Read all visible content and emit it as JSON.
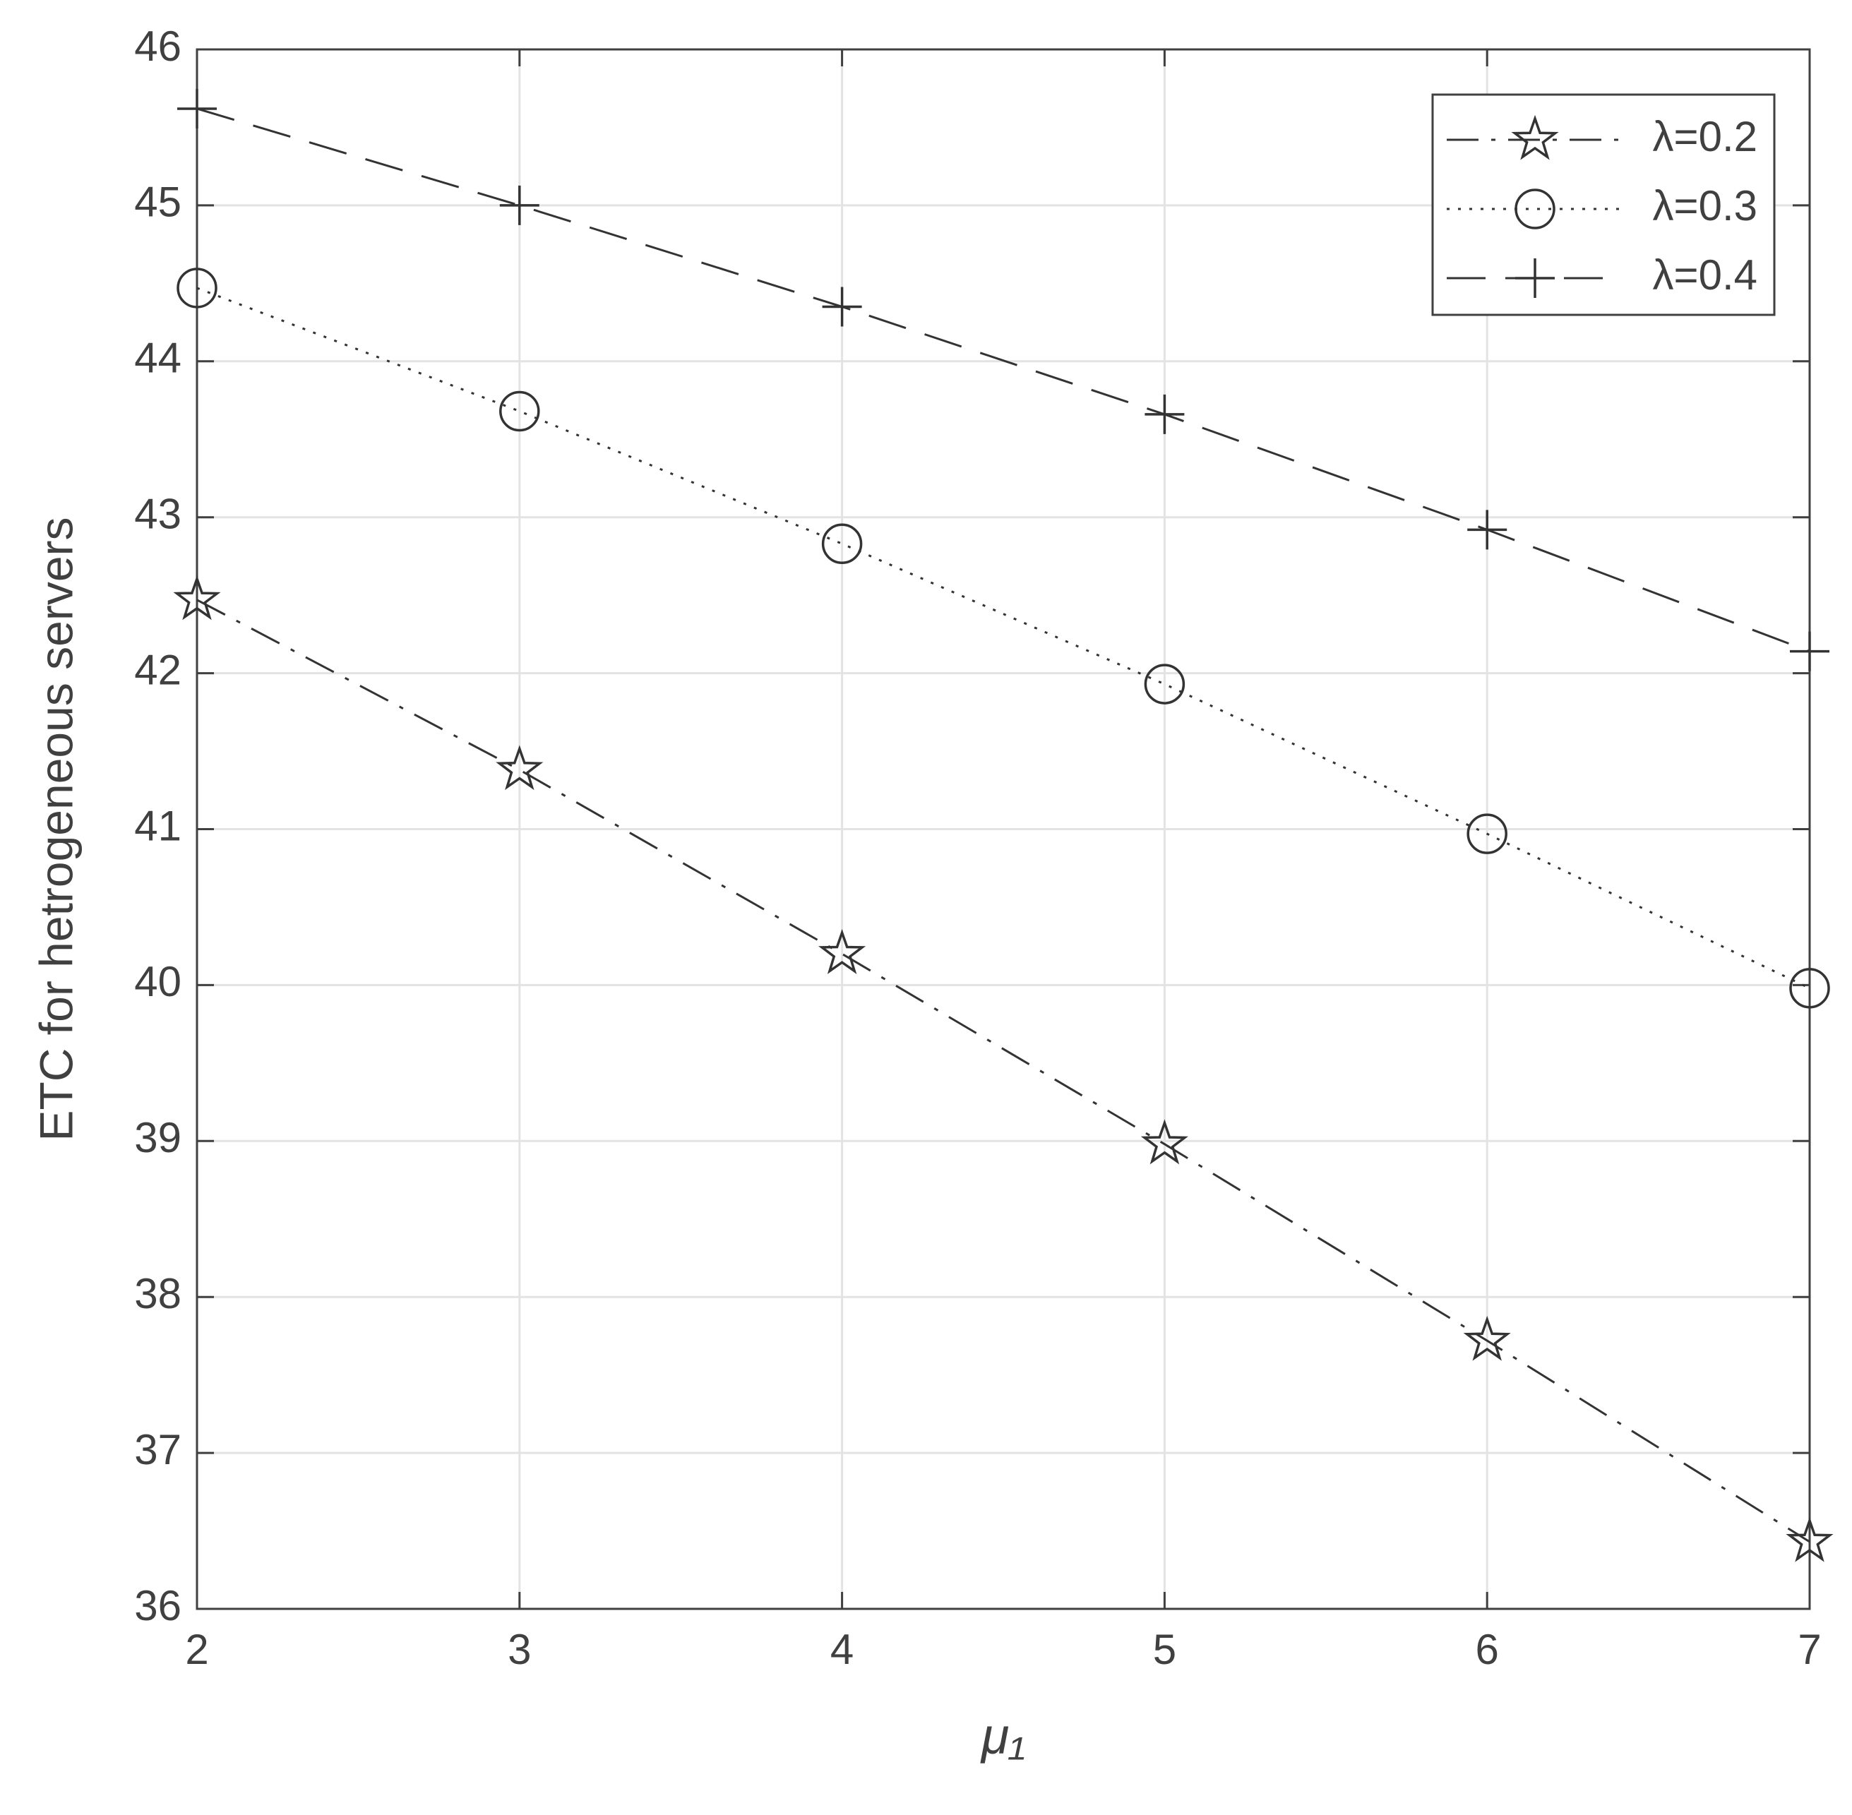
{
  "chart_data": {
    "type": "line",
    "xlabel": "μ₁",
    "ylabel": "ETC for hetrogeneous servers",
    "x": [
      2,
      3,
      4,
      5,
      6,
      7
    ],
    "series": [
      {
        "name": "λ=0.2",
        "color": "#333333",
        "marker": "star",
        "linestyle": "dashdot",
        "values": [
          42.47,
          41.38,
          40.2,
          38.98,
          37.72,
          36.43
        ]
      },
      {
        "name": "λ=0.3",
        "color": "#333333",
        "marker": "circle",
        "linestyle": "dotted",
        "values": [
          44.47,
          43.68,
          42.83,
          41.93,
          40.97,
          39.98
        ]
      },
      {
        "name": "λ=0.4",
        "color": "#333333",
        "marker": "plus",
        "linestyle": "dashed",
        "values": [
          45.62,
          45.0,
          44.35,
          43.66,
          42.92,
          42.14
        ]
      }
    ],
    "xlim": [
      2,
      7
    ],
    "xticks": [
      2,
      3,
      4,
      5,
      6,
      7
    ],
    "ylim": [
      36,
      46
    ],
    "yticks": [
      36,
      37,
      38,
      39,
      40,
      41,
      42,
      43,
      44,
      45,
      46
    ],
    "grid": true,
    "legend": "top-right"
  }
}
